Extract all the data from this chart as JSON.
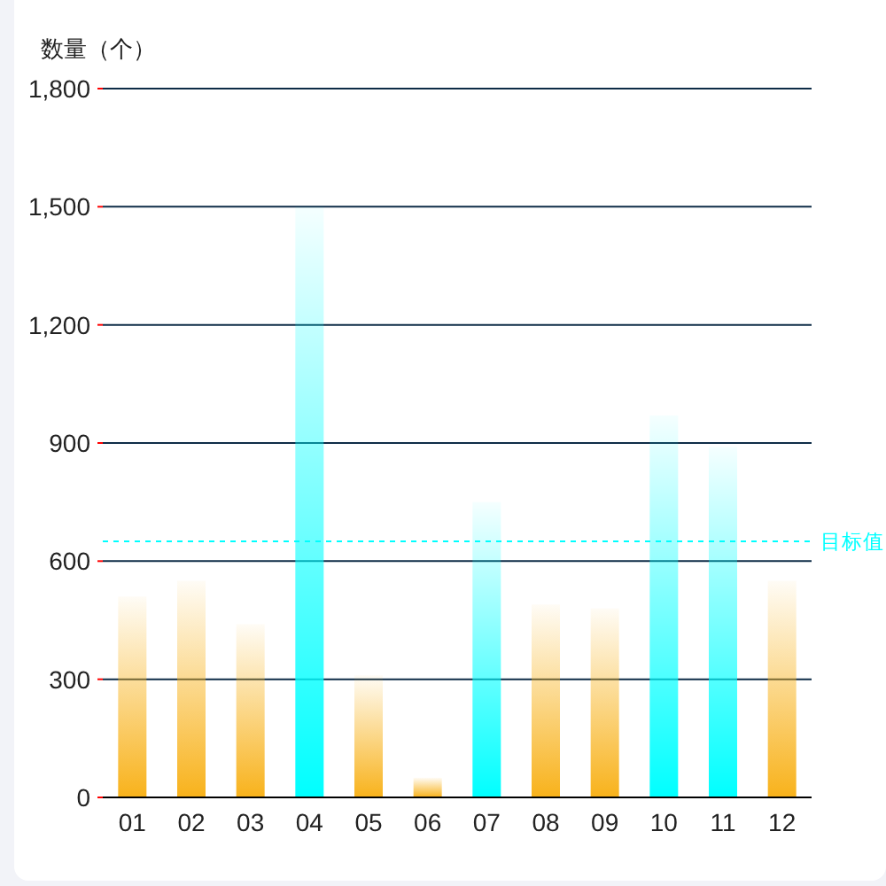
{
  "chart_data": {
    "type": "bar",
    "ylabel": "数量（个）",
    "categories": [
      "01",
      "02",
      "03",
      "04",
      "05",
      "06",
      "07",
      "08",
      "09",
      "10",
      "11",
      "12"
    ],
    "values": [
      510,
      550,
      440,
      1500,
      310,
      50,
      750,
      490,
      480,
      970,
      890,
      550
    ],
    "colors": [
      "#f8b21b",
      "#f8b21b",
      "#f8b21b",
      "#00ffff",
      "#f8b21b",
      "#f8b21b",
      "#00ffff",
      "#f8b21b",
      "#f8b21b",
      "#00ffff",
      "#00ffff",
      "#f8b21b"
    ],
    "ylim": [
      0,
      1800
    ],
    "yticks": [
      0,
      300,
      600,
      900,
      {
        "value": 1200,
        "label": "1,200"
      },
      {
        "value": 1500,
        "label": "1,500"
      },
      {
        "value": 1800,
        "label": "1,800"
      }
    ],
    "grid": "y",
    "ref_lines": [
      {
        "axis": "y",
        "value": 650,
        "label": "目标值",
        "color": "#00ffff",
        "line_style": "dashed"
      }
    ]
  }
}
